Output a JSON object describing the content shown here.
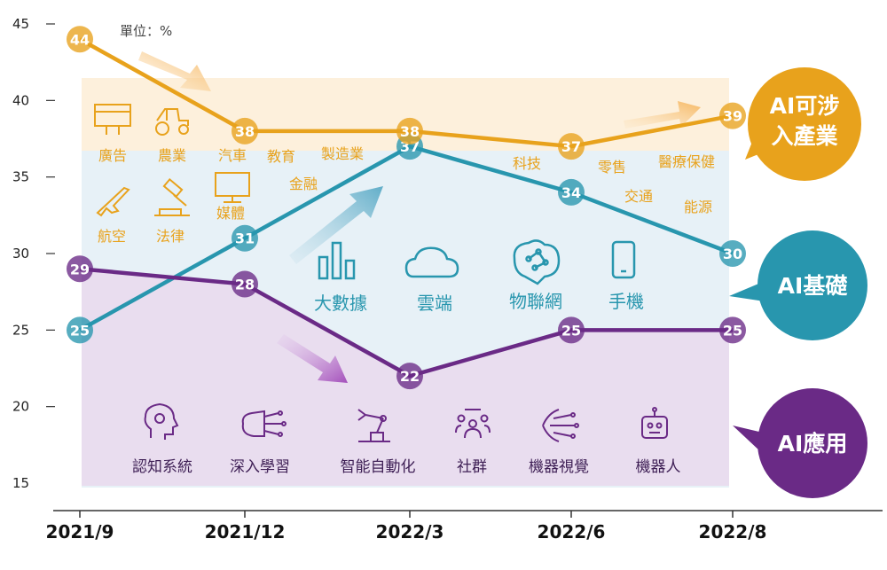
{
  "chart_data": {
    "type": "line",
    "unit_note": "單位：%",
    "categories": [
      "2021/9",
      "2021/12",
      "2022/3",
      "2022/6",
      "2022/8"
    ],
    "ylim": [
      15,
      45
    ],
    "yticks": [
      "45",
      "40",
      "35",
      "30",
      "25",
      "20",
      "15"
    ],
    "series": [
      {
        "name": "AI可涉入產業",
        "color": "#e8a21c",
        "band": "#fdf0dc",
        "values": [
          44,
          38,
          38,
          37,
          39
        ]
      },
      {
        "name": "AI基礎",
        "color": "#2896ae",
        "band": "#e7f1f7",
        "values": [
          25,
          31,
          37,
          34,
          30
        ]
      },
      {
        "name": "AI應用",
        "color": "#6a2a86",
        "band": "#e9ddef",
        "values": [
          29,
          28,
          22,
          25,
          25
        ]
      }
    ],
    "callouts": {
      "industry": [
        "AI可涉",
        "入產業"
      ],
      "foundation": "AI基礎",
      "application": "AI應用"
    },
    "industry_items": [
      "廣告",
      "農業",
      "汽車",
      "教育",
      "製造業",
      "金融",
      "航空",
      "法律",
      "媒體",
      "科技",
      "零售",
      "醫療保健",
      "交通",
      "能源"
    ],
    "foundation_items": [
      "大數據",
      "雲端",
      "物聯網",
      "手機"
    ],
    "application_items": [
      "認知系統",
      "深入學習",
      "智能自動化",
      "社群",
      "機器視覺",
      "機器人"
    ]
  }
}
